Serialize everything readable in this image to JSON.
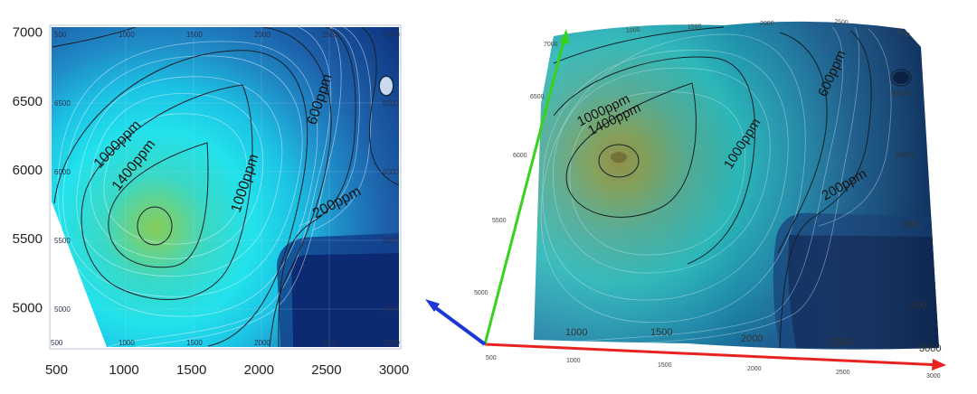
{
  "chart_data": [
    {
      "type": "contour",
      "view": "2D contour map",
      "xlim": [
        450,
        3050
      ],
      "ylim": [
        4700,
        7050
      ],
      "x_ticks": [
        500,
        1000,
        1500,
        2000,
        2500,
        3000
      ],
      "y_ticks": [
        5000,
        5500,
        6000,
        6500,
        7000
      ],
      "inner_top_labels": [
        "500",
        "1000",
        "1500",
        "2000",
        "2500",
        "3000"
      ],
      "inner_bottom_labels": [
        "500",
        "1000",
        "1500",
        "2000",
        "2500",
        "3000"
      ],
      "inner_left_labels": [
        "6500",
        "6000",
        "5500",
        "5000"
      ],
      "inner_right_labels": [
        "6500",
        "6000",
        "5500",
        "5000"
      ],
      "contour_labels": [
        "1400ppm",
        "1000ppm",
        "1000ppm",
        "600ppm",
        "200ppm"
      ],
      "peak": {
        "x": 1220,
        "y": 5600
      },
      "secondary_low": {
        "x": 2920,
        "y": 6630
      },
      "colors": {
        "low": "#0b2c78",
        "mid": "#1e70b8",
        "high": "#22e2ec",
        "peak": "#86cc5a"
      }
    },
    {
      "type": "surface3d",
      "view": "3D surface map",
      "x_ticks": [
        "500",
        "1000",
        "1500",
        "2000",
        "2500",
        "3000"
      ],
      "y_ticks": [
        "5000",
        "5500",
        "6000",
        "6500",
        "7000"
      ],
      "surface_x_labels": [
        "1000",
        "1500",
        "2000",
        "2500",
        "3000"
      ],
      "surface_top_labels": [
        "1000",
        "1500",
        "2000",
        "2500",
        "3000"
      ],
      "surface_right_labels": [
        "6500",
        "6000",
        "5500",
        "5000"
      ],
      "contour_labels": [
        "1000ppm",
        "1400ppm",
        "1000ppm",
        "600ppm",
        "200ppm"
      ],
      "axis_colors": {
        "x": "#e8231f",
        "y": "#36d21c",
        "z": "#1b37d8"
      }
    }
  ]
}
